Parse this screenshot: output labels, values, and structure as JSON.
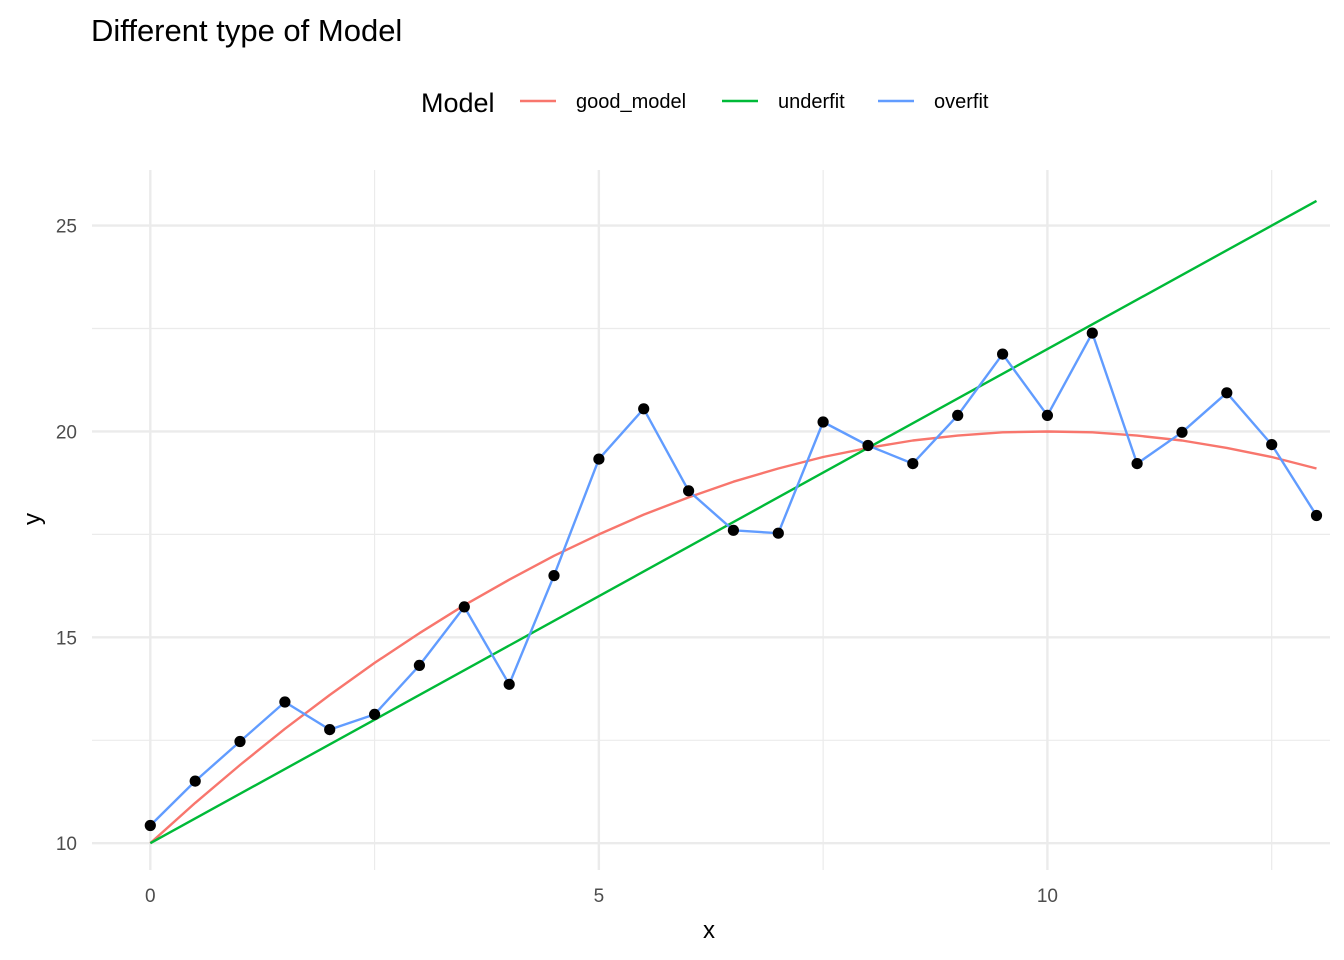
{
  "chart_data": {
    "type": "line",
    "title": "Different type of Model",
    "xlabel": "x",
    "ylabel": "y",
    "xlim": [
      -0.65,
      13.15
    ],
    "ylim": [
      9.35,
      26.35
    ],
    "x_ticks": [
      0,
      5,
      10
    ],
    "y_ticks": [
      10,
      15,
      20,
      25
    ],
    "grid": true,
    "legend": {
      "title": "Model",
      "position": "top",
      "entries": [
        "good_model",
        "underfit",
        "overfit"
      ]
    },
    "points": {
      "x": [
        0,
        0.5,
        1,
        1.5,
        2,
        2.5,
        3,
        3.5,
        4,
        4.5,
        5,
        5.5,
        6,
        6.5,
        7,
        7.5,
        8,
        8.5,
        9,
        9.5,
        10,
        10.5,
        11,
        11.5,
        12,
        12.5,
        13
      ],
      "y": [
        10.43,
        11.51,
        12.47,
        13.43,
        12.76,
        13.13,
        14.32,
        15.74,
        13.86,
        16.5,
        19.33,
        20.55,
        18.56,
        17.6,
        17.53,
        20.23,
        19.66,
        19.22,
        20.39,
        21.88,
        20.39,
        22.39,
        19.22,
        19.98,
        20.94,
        19.68,
        17.96
      ]
    },
    "series": [
      {
        "name": "good_model",
        "color": "#f8766d",
        "x": [
          0,
          0.5,
          1,
          1.5,
          2,
          2.5,
          3,
          3.5,
          4,
          4.5,
          5,
          5.5,
          6,
          6.5,
          7,
          7.5,
          8,
          8.5,
          9,
          9.5,
          10,
          10.5,
          11,
          11.5,
          12,
          12.5,
          13
        ],
        "y": [
          10.0,
          10.98,
          11.9,
          12.78,
          13.6,
          14.38,
          15.1,
          15.78,
          16.4,
          16.98,
          17.5,
          17.98,
          18.4,
          18.78,
          19.1,
          19.38,
          19.6,
          19.78,
          19.9,
          19.98,
          20.0,
          19.98,
          19.9,
          19.78,
          19.6,
          19.38,
          19.1
        ]
      },
      {
        "name": "underfit",
        "color": "#00ba38",
        "x": [
          0,
          13
        ],
        "y": [
          10.0,
          25.6
        ]
      },
      {
        "name": "overfit",
        "color": "#619cff",
        "x": [
          0,
          0.5,
          1,
          1.5,
          2,
          2.5,
          3,
          3.5,
          4,
          4.5,
          5,
          5.5,
          6,
          6.5,
          7,
          7.5,
          8,
          8.5,
          9,
          9.5,
          10,
          10.5,
          11,
          11.5,
          12,
          12.5,
          13
        ],
        "y": [
          10.43,
          11.51,
          12.47,
          13.43,
          12.76,
          13.13,
          14.32,
          15.74,
          13.86,
          16.5,
          19.33,
          20.55,
          18.56,
          17.6,
          17.53,
          20.23,
          19.66,
          19.22,
          20.39,
          21.88,
          20.39,
          22.39,
          19.22,
          19.98,
          20.94,
          19.68,
          17.96
        ]
      }
    ]
  }
}
